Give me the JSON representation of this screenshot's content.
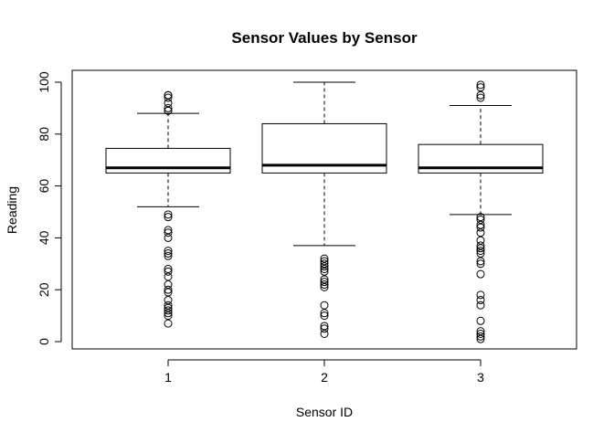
{
  "chart_data": {
    "type": "boxplot",
    "title": "Sensor Values by Sensor",
    "xlabel": "Sensor ID",
    "ylabel": "Reading",
    "categories": [
      "1",
      "2",
      "3"
    ],
    "yticks": [
      0,
      20,
      40,
      60,
      80,
      100
    ],
    "ylim": [
      -3,
      103
    ],
    "grid": false,
    "boxes": [
      {
        "label": "1",
        "whisker_low": 52,
        "q1": 65,
        "median": 67,
        "q3": 74.5,
        "whisker_high": 88,
        "outliers": [
          95,
          95,
          94,
          92,
          90,
          89,
          89,
          49,
          48,
          43,
          42,
          40,
          35,
          34,
          33,
          28,
          27,
          25,
          22,
          20,
          19,
          16,
          14,
          13,
          12,
          11,
          10,
          7
        ]
      },
      {
        "label": "2",
        "whisker_low": 37,
        "q1": 65,
        "median": 68,
        "q3": 84,
        "whisker_high": 100,
        "outliers": [
          32,
          31,
          30,
          29,
          28,
          27,
          24,
          23,
          22,
          21,
          14,
          11,
          10,
          6,
          5,
          3
        ]
      },
      {
        "label": "3",
        "whisker_low": 49,
        "q1": 65,
        "median": 67,
        "q3": 76,
        "whisker_high": 91,
        "outliers": [
          99,
          98,
          95,
          94,
          48,
          47,
          45,
          44,
          42,
          39,
          37,
          36,
          35,
          34,
          31,
          30,
          26,
          18,
          16,
          14,
          8,
          4,
          3,
          2,
          1
        ]
      }
    ]
  }
}
